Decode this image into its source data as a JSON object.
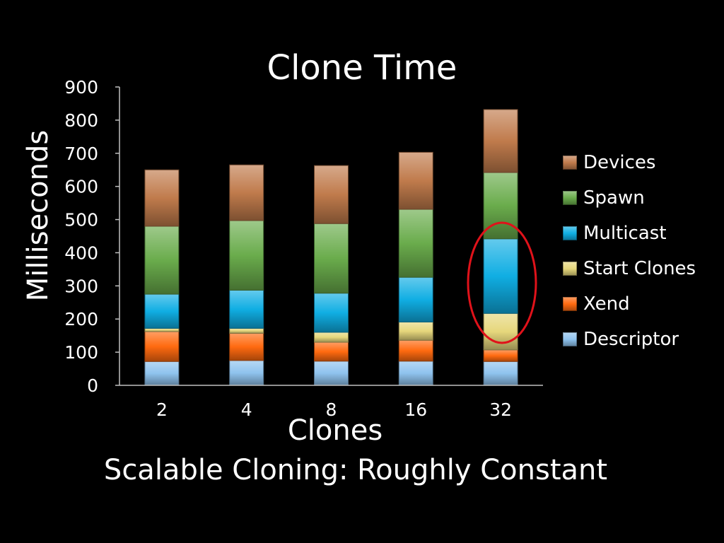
{
  "slide": {
    "subtitle": "Scalable Cloning: Roughly Constant"
  },
  "chart_data": {
    "type": "bar",
    "stacked": true,
    "title": "Clone Time",
    "xlabel": "Clones",
    "ylabel": "Milliseconds",
    "ylim": [
      0,
      900
    ],
    "yticks": [
      0,
      100,
      200,
      300,
      400,
      500,
      600,
      700,
      800,
      900
    ],
    "categories": [
      "2",
      "4",
      "8",
      "16",
      "32"
    ],
    "series": [
      {
        "name": "Descriptor",
        "color": "#8fc3ee",
        "values": [
          72,
          75,
          73,
          73,
          72
        ]
      },
      {
        "name": "Xend",
        "color": "#ff6a10",
        "values": [
          90,
          82,
          57,
          63,
          35
        ]
      },
      {
        "name": "Start Clones",
        "color": "#e6d77c",
        "values": [
          10,
          15,
          30,
          55,
          110
        ]
      },
      {
        "name": "Multicast",
        "color": "#10aee3",
        "values": [
          103,
          115,
          118,
          135,
          225
        ]
      },
      {
        "name": "Spawn",
        "color": "#6aac4c",
        "values": [
          205,
          210,
          210,
          205,
          200
        ]
      },
      {
        "name": "Devices",
        "color": "#c07b4c",
        "values": [
          170,
          168,
          175,
          172,
          190
        ]
      }
    ],
    "legend": [
      "Devices",
      "Spawn",
      "Multicast",
      "Start Clones",
      "Xend",
      "Descriptor"
    ],
    "legend_position": "right",
    "grid": false,
    "annotation": {
      "type": "ellipse",
      "color": "#e0121a",
      "target": "Multicast segment of 32 clones"
    }
  }
}
